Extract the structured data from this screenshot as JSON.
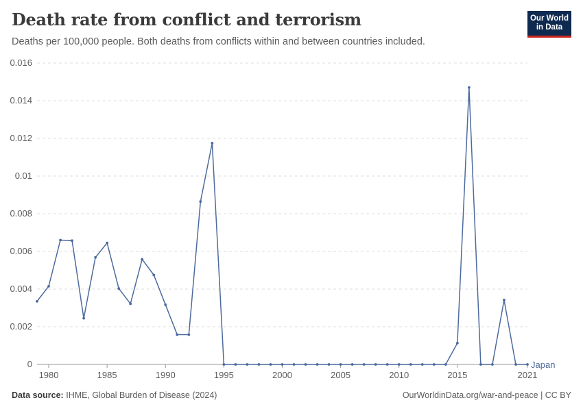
{
  "header": {
    "title": "Death rate from conflict and terrorism",
    "subtitle": "Deaths per 100,000 people. Both deaths from conflicts within and between countries included.",
    "logo_line1": "Our World",
    "logo_line2": "in Data"
  },
  "footer": {
    "source_label": "Data source:",
    "source_text": "IHME, Global Burden of Disease (2024)",
    "url_text": "OurWorldinData.org/war-and-peace | CC BY"
  },
  "colors": {
    "series": "#4c6a9c",
    "grid": "#dddddd",
    "axis": "#5b5b5b",
    "logo_bg": "#0f2a4f",
    "logo_accent": "#ce261e"
  },
  "chart_data": {
    "type": "line",
    "title": "Death rate from conflict and terrorism",
    "xlim": [
      1979,
      2021
    ],
    "ylim": [
      0,
      0.016
    ],
    "x_ticks": [
      1980,
      1985,
      1990,
      1995,
      2000,
      2005,
      2010,
      2015,
      2021
    ],
    "y_ticks": [
      0,
      0.002,
      0.004,
      0.006,
      0.008,
      0.01,
      0.012,
      0.014,
      0.016
    ],
    "y_tick_labels": [
      "0",
      "0.002",
      "0.004",
      "0.006",
      "0.008",
      "0.01",
      "0.012",
      "0.014",
      "0.016"
    ],
    "grid": true,
    "series": [
      {
        "name": "Japan",
        "x": [
          1979,
          1980,
          1981,
          1982,
          1983,
          1984,
          1985,
          1986,
          1987,
          1988,
          1989,
          1990,
          1991,
          1992,
          1993,
          1994,
          1995,
          1996,
          1997,
          1998,
          1999,
          2000,
          2001,
          2002,
          2003,
          2004,
          2005,
          2006,
          2007,
          2008,
          2009,
          2010,
          2011,
          2012,
          2013,
          2014,
          2015,
          2016,
          2017,
          2018,
          2019,
          2020,
          2021
        ],
        "values": [
          0.00335,
          0.00415,
          0.0066,
          0.00657,
          0.00245,
          0.00568,
          0.00645,
          0.00403,
          0.00322,
          0.00558,
          0.00475,
          0.00317,
          0.00158,
          0.00158,
          0.00865,
          0.01175,
          0,
          0,
          0,
          0,
          0,
          0,
          0,
          0,
          0,
          0,
          0,
          0,
          0,
          0,
          0,
          0,
          0,
          0,
          0,
          0,
          0.00113,
          0.0147,
          0,
          0,
          0.00342,
          0,
          0
        ]
      }
    ]
  }
}
